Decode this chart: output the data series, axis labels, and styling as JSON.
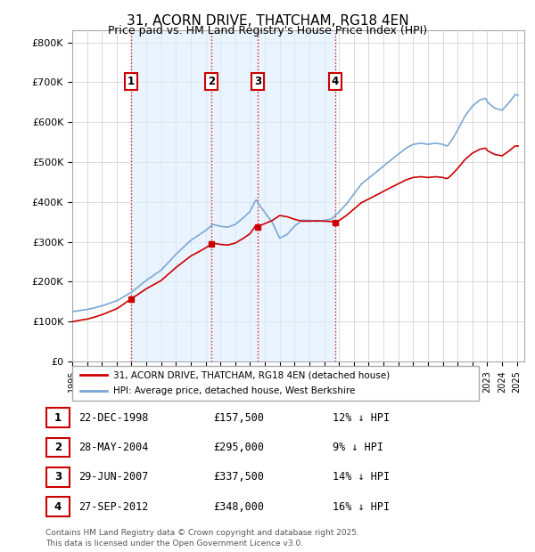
{
  "title": "31, ACORN DRIVE, THATCHAM, RG18 4EN",
  "subtitle": "Price paid vs. HM Land Registry's House Price Index (HPI)",
  "title_fontsize": 11,
  "subtitle_fontsize": 9,
  "bg_color": "#ffffff",
  "plot_bg_color": "#ffffff",
  "grid_color": "#cccccc",
  "hpi_color": "#7aa7d4",
  "price_color": "#cc0000",
  "vline_color": "#cc0000",
  "annotation_box_color": "#cc0000",
  "shaded_color": "#ddeeff",
  "ytick_labels": [
    "£0",
    "£100K",
    "£200K",
    "£300K",
    "£400K",
    "£500K",
    "£600K",
    "£700K",
    "£800K"
  ],
  "yticks": [
    0,
    100000,
    200000,
    300000,
    400000,
    500000,
    600000,
    700000,
    800000
  ],
  "xmin": 1995.0,
  "xmax": 2025.5,
  "ymin": 0,
  "ymax": 830000,
  "sale_dates_num": [
    1998.98,
    2004.41,
    2007.5,
    2012.75
  ],
  "sale_prices": [
    157500,
    295000,
    337500,
    348000
  ],
  "sale_labels": [
    "1",
    "2",
    "3",
    "4"
  ],
  "legend_price_label": "31, ACORN DRIVE, THATCHAM, RG18 4EN (detached house)",
  "legend_hpi_label": "HPI: Average price, detached house, West Berkshire",
  "table_rows": [
    [
      "1",
      "22-DEC-1998",
      "£157,500",
      "12% ↓ HPI"
    ],
    [
      "2",
      "28-MAY-2004",
      "£295,000",
      "9% ↓ HPI"
    ],
    [
      "3",
      "29-JUN-2007",
      "£337,500",
      "14% ↓ HPI"
    ],
    [
      "4",
      "27-SEP-2012",
      "£348,000",
      "16% ↓ HPI"
    ]
  ],
  "footer_text": "Contains HM Land Registry data © Crown copyright and database right 2025.\nThis data is licensed under the Open Government Licence v3.0."
}
